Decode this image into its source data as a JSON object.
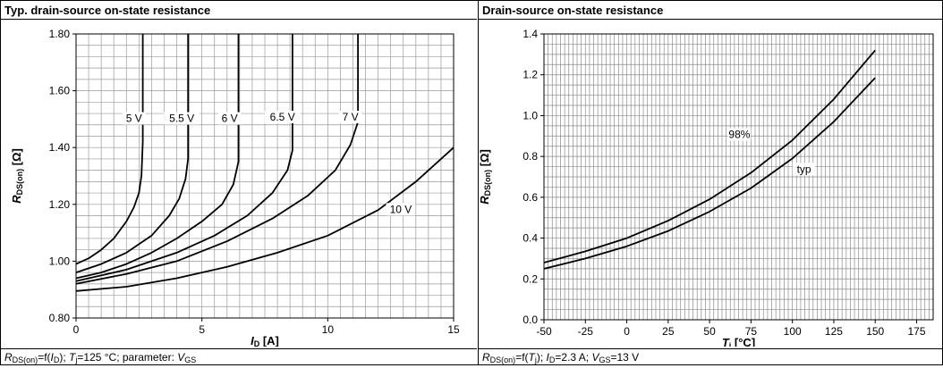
{
  "left_panel": {
    "title": "Typ. drain-source on-state resistance",
    "caption": {
      "p1": "R",
      "p1_sub": "DS(on)",
      "p2": "=f(",
      "p3": "I",
      "p3_sub": "D",
      "p4": "); ",
      "p5": "T",
      "p5_sub": "j",
      "p6": "=125 °C; parameter: ",
      "p7": "V",
      "p7_sub": "GS"
    }
  },
  "right_panel": {
    "title": "Drain-source on-state resistance",
    "caption": {
      "p1": "R",
      "p1_sub": "DS(on)",
      "p2": "=f(",
      "p3": "T",
      "p3_sub": "j",
      "p4": "); ",
      "p5": "I",
      "p5_sub": "D",
      "p6": "=2.3 A; ",
      "p7": "V",
      "p7_sub": "GS",
      "p8": "=13 V"
    }
  },
  "chart_data": [
    {
      "type": "line",
      "title": "Typ. drain-source on-state resistance",
      "xlabel": "I D [A]",
      "ylabel": "R DS(on) [Ω]",
      "xlim": [
        0,
        15
      ],
      "ylim": [
        0.8,
        1.8
      ],
      "xticks": [
        0,
        5,
        10,
        15
      ],
      "yticks": [
        0.8,
        1.0,
        1.2,
        1.4,
        1.6,
        1.8
      ],
      "ytick_labels": [
        "0.80",
        "1.00",
        "1.20",
        "1.40",
        "1.60",
        "1.80"
      ],
      "grid": true,
      "series": [
        {
          "name": "5 V",
          "points": [
            [
              0,
              0.99
            ],
            [
              0.5,
              1.01
            ],
            [
              1.0,
              1.04
            ],
            [
              1.5,
              1.08
            ],
            [
              2.0,
              1.14
            ],
            [
              2.3,
              1.19
            ],
            [
              2.5,
              1.24
            ],
            [
              2.6,
              1.3
            ],
            [
              2.65,
              1.42
            ],
            [
              2.65,
              1.8
            ]
          ]
        },
        {
          "name": "5.5 V",
          "points": [
            [
              0,
              0.96
            ],
            [
              1,
              0.99
            ],
            [
              2,
              1.03
            ],
            [
              3,
              1.09
            ],
            [
              3.7,
              1.16
            ],
            [
              4.1,
              1.22
            ],
            [
              4.35,
              1.29
            ],
            [
              4.45,
              1.36
            ],
            [
              4.45,
              1.8
            ]
          ]
        },
        {
          "name": "6 V",
          "points": [
            [
              0,
              0.94
            ],
            [
              1,
              0.96
            ],
            [
              2,
              0.99
            ],
            [
              3,
              1.03
            ],
            [
              4,
              1.08
            ],
            [
              5,
              1.14
            ],
            [
              5.8,
              1.2
            ],
            [
              6.25,
              1.27
            ],
            [
              6.45,
              1.35
            ],
            [
              6.45,
              1.8
            ]
          ]
        },
        {
          "name": "6.5 V",
          "points": [
            [
              0,
              0.93
            ],
            [
              2,
              0.97
            ],
            [
              4,
              1.03
            ],
            [
              5.5,
              1.09
            ],
            [
              6.8,
              1.16
            ],
            [
              7.8,
              1.24
            ],
            [
              8.4,
              1.32
            ],
            [
              8.6,
              1.39
            ],
            [
              8.6,
              1.8
            ]
          ]
        },
        {
          "name": "7 V",
          "points": [
            [
              0,
              0.92
            ],
            [
              2,
              0.955
            ],
            [
              4,
              1.0
            ],
            [
              6,
              1.07
            ],
            [
              7.8,
              1.15
            ],
            [
              9.2,
              1.23
            ],
            [
              10.3,
              1.32
            ],
            [
              10.9,
              1.41
            ],
            [
              11.2,
              1.49
            ],
            [
              11.2,
              1.8
            ]
          ]
        },
        {
          "name": "10 V",
          "points": [
            [
              0,
              0.895
            ],
            [
              2,
              0.91
            ],
            [
              4,
              0.94
            ],
            [
              6,
              0.98
            ],
            [
              8,
              1.03
            ],
            [
              10,
              1.09
            ],
            [
              12,
              1.18
            ],
            [
              13.5,
              1.28
            ],
            [
              15,
              1.4
            ]
          ]
        }
      ],
      "annotations": [
        {
          "text": "5 V",
          "x": 2.3,
          "y": 1.49
        },
        {
          "text": "5.5 V",
          "x": 4.2,
          "y": 1.49
        },
        {
          "text": "6 V",
          "x": 6.1,
          "y": 1.49
        },
        {
          "text": "6.5 V",
          "x": 8.2,
          "y": 1.495
        },
        {
          "text": "7 V",
          "x": 10.9,
          "y": 1.495
        },
        {
          "text": "10 V",
          "x": 12.9,
          "y": 1.17
        }
      ]
    },
    {
      "type": "line",
      "title": "Drain-source on-state resistance",
      "xlabel": "T j [°C]",
      "ylabel": "R DS(on) [Ω]",
      "xlim": [
        -50,
        185
      ],
      "ylim": [
        0,
        1.4
      ],
      "xticks": [
        -50,
        -25,
        0,
        25,
        50,
        75,
        100,
        125,
        150,
        175
      ],
      "yticks": [
        0,
        0.2,
        0.4,
        0.6,
        0.8,
        1.0,
        1.2,
        1.4
      ],
      "ytick_labels": [
        "0.0",
        "0.2",
        "0.4",
        "0.6",
        "0.8",
        "1.0",
        "1.2",
        "1.4"
      ],
      "grid": true,
      "series": [
        {
          "name": "98%",
          "points": [
            [
              -50,
              0.28
            ],
            [
              -25,
              0.335
            ],
            [
              0,
              0.4
            ],
            [
              25,
              0.485
            ],
            [
              50,
              0.59
            ],
            [
              75,
              0.72
            ],
            [
              100,
              0.88
            ],
            [
              125,
              1.08
            ],
            [
              150,
              1.32
            ]
          ]
        },
        {
          "name": "typ",
          "points": [
            [
              -50,
              0.25
            ],
            [
              -25,
              0.3
            ],
            [
              0,
              0.36
            ],
            [
              25,
              0.435
            ],
            [
              50,
              0.53
            ],
            [
              75,
              0.645
            ],
            [
              100,
              0.79
            ],
            [
              125,
              0.97
            ],
            [
              150,
              1.185
            ]
          ]
        }
      ],
      "annotations": [
        {
          "text": "98%",
          "x": 68,
          "y": 0.89
        },
        {
          "text": "typ",
          "x": 107,
          "y": 0.72
        }
      ]
    }
  ]
}
